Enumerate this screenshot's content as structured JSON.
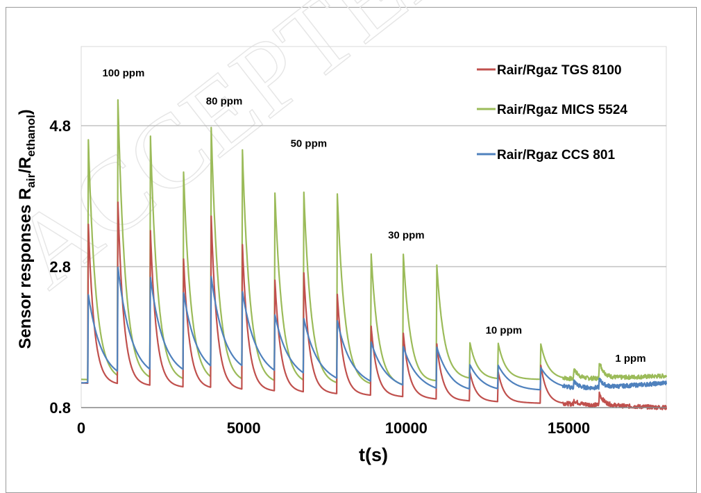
{
  "watermark": "ACCEPTED",
  "chart_data": {
    "type": "line",
    "title": "",
    "xlabel": "t(s)",
    "ylabel": {
      "prefix": "Sensor responses  R",
      "sub1": "air",
      "mid": "/R",
      "sub2": "ethanol"
    },
    "xlim": [
      0,
      18000
    ],
    "ylim": [
      0.8,
      6.2
    ],
    "x_ticks": [
      0,
      5000,
      10000,
      15000
    ],
    "x_tick_labels": [
      "0",
      "5000",
      "10000",
      "15000"
    ],
    "y_ticks": [
      0.8,
      2.8,
      4.8
    ],
    "y_tick_labels": [
      "0.8",
      "2.8",
      "4.8"
    ],
    "grid": "horizontal",
    "legend_position": "top-right",
    "series": [
      {
        "name": "Rair/Rgaz TGS 8100",
        "color": "#c0504d",
        "baseline": [
          [
            0,
            1.15
          ],
          [
            5000,
            1.05
          ],
          [
            10000,
            0.95
          ],
          [
            11500,
            0.9
          ],
          [
            15000,
            0.85
          ],
          [
            18000,
            0.8
          ]
        ],
        "peaks": [
          [
            220,
            3.4
          ],
          [
            1130,
            3.7
          ],
          [
            2130,
            3.3
          ],
          [
            3150,
            2.9
          ],
          [
            4000,
            3.5
          ],
          [
            4960,
            3.1
          ],
          [
            5960,
            2.6
          ],
          [
            6850,
            2.7
          ],
          [
            7880,
            2.4
          ],
          [
            8920,
            1.95
          ],
          [
            9910,
            1.85
          ],
          [
            10940,
            1.7
          ],
          [
            11960,
            1.3
          ],
          [
            12830,
            1.3
          ],
          [
            14140,
            1.4
          ]
        ],
        "late_bumps": [
          [
            15160,
            0.9
          ],
          [
            15940,
            1.0
          ]
        ]
      },
      {
        "name": "Rair/Rgaz MICS 5524",
        "color": "#9bbb59",
        "baseline": [
          [
            0,
            1.2
          ],
          [
            5000,
            1.15
          ],
          [
            10000,
            1.1
          ],
          [
            11500,
            1.2
          ],
          [
            15000,
            1.2
          ],
          [
            18000,
            1.25
          ]
        ],
        "peaks": [
          [
            220,
            4.6
          ],
          [
            1130,
            5.1
          ],
          [
            2130,
            4.6
          ],
          [
            3150,
            4.1
          ],
          [
            4000,
            4.7
          ],
          [
            4960,
            4.4
          ],
          [
            5960,
            3.8
          ],
          [
            6850,
            3.8
          ],
          [
            7880,
            3.8
          ],
          [
            8920,
            2.95
          ],
          [
            9910,
            2.95
          ],
          [
            10940,
            2.8
          ],
          [
            11960,
            1.7
          ],
          [
            12830,
            1.7
          ],
          [
            14140,
            1.7
          ]
        ],
        "late_bumps": [
          [
            15160,
            1.35
          ],
          [
            15940,
            1.45
          ]
        ]
      },
      {
        "name": "Rair/Rgaz CCS 801",
        "color": "#4f81bd",
        "baseline": [
          [
            0,
            1.15
          ],
          [
            5000,
            1.25
          ],
          [
            10000,
            1.05
          ],
          [
            11500,
            1.0
          ],
          [
            15000,
            1.05
          ],
          [
            18000,
            1.15
          ]
        ],
        "peaks": [
          [
            220,
            2.4
          ],
          [
            1130,
            2.65
          ],
          [
            2130,
            2.5
          ],
          [
            3150,
            2.3
          ],
          [
            4000,
            2.5
          ],
          [
            4960,
            2.3
          ],
          [
            5960,
            2.0
          ],
          [
            6850,
            1.95
          ],
          [
            7880,
            1.95
          ],
          [
            8920,
            1.65
          ],
          [
            9910,
            1.6
          ],
          [
            10940,
            1.6
          ],
          [
            11960,
            1.35
          ],
          [
            12830,
            1.35
          ],
          [
            14140,
            1.35
          ]
        ],
        "late_bumps": [
          [
            15160,
            1.15
          ],
          [
            15940,
            1.2
          ]
        ]
      }
    ],
    "annotations": [
      {
        "text": "100 ppm",
        "x": 1300,
        "y": 5.5
      },
      {
        "text": "80 ppm",
        "x": 4400,
        "y": 5.1
      },
      {
        "text": "50 ppm",
        "x": 7000,
        "y": 4.5
      },
      {
        "text": "30 ppm",
        "x": 10000,
        "y": 3.2
      },
      {
        "text": "10 ppm",
        "x": 13000,
        "y": 1.85
      },
      {
        "text": "1 ppm",
        "x": 16900,
        "y": 1.45
      }
    ]
  }
}
